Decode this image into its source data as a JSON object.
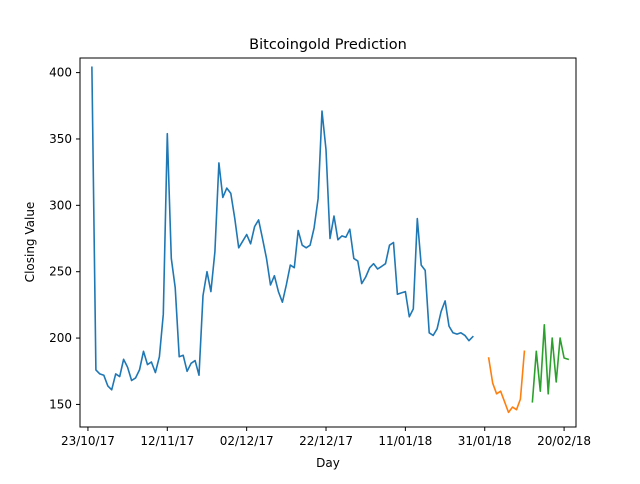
{
  "chart_data": {
    "type": "line",
    "title": "Bitcoingold Prediction",
    "xlabel": "Day",
    "ylabel": "Closing Value",
    "x_axis": {
      "start": "2017-10-21",
      "end": "2018-02-23",
      "unit": "date"
    },
    "x_ticks": [
      {
        "date": "2017-10-23",
        "label": "23/10/17"
      },
      {
        "date": "2017-11-12",
        "label": "12/11/17"
      },
      {
        "date": "2017-12-02",
        "label": "02/12/17"
      },
      {
        "date": "2017-12-22",
        "label": "22/12/17"
      },
      {
        "date": "2018-01-11",
        "label": "11/01/18"
      },
      {
        "date": "2018-01-31",
        "label": "31/01/18"
      },
      {
        "date": "2018-02-20",
        "label": "20/02/18"
      }
    ],
    "ylim": [
      133,
      411
    ],
    "y_ticks": [
      150,
      200,
      250,
      300,
      350,
      400
    ],
    "grid": false,
    "legend": "none",
    "series": [
      {
        "color": "#1f77b4",
        "x": [
          "2017-10-24",
          "2017-10-25",
          "2017-10-26",
          "2017-10-27",
          "2017-10-28",
          "2017-10-29",
          "2017-10-30",
          "2017-10-31",
          "2017-11-01",
          "2017-11-02",
          "2017-11-03",
          "2017-11-04",
          "2017-11-05",
          "2017-11-06",
          "2017-11-07",
          "2017-11-08",
          "2017-11-09",
          "2017-11-10",
          "2017-11-11",
          "2017-11-12",
          "2017-11-13",
          "2017-11-14",
          "2017-11-15",
          "2017-11-16",
          "2017-11-17",
          "2017-11-18",
          "2017-11-19",
          "2017-11-20",
          "2017-11-21",
          "2017-11-22",
          "2017-11-23",
          "2017-11-24",
          "2017-11-25",
          "2017-11-26",
          "2017-11-27",
          "2017-11-28",
          "2017-11-29",
          "2017-11-30",
          "2017-12-01",
          "2017-12-02",
          "2017-12-03",
          "2017-12-04",
          "2017-12-05",
          "2017-12-06",
          "2017-12-07",
          "2017-12-08",
          "2017-12-09",
          "2017-12-10",
          "2017-12-11",
          "2017-12-12",
          "2017-12-13",
          "2017-12-14",
          "2017-12-15",
          "2017-12-16",
          "2017-12-17",
          "2017-12-18",
          "2017-12-19",
          "2017-12-20",
          "2017-12-21",
          "2017-12-22",
          "2017-12-23",
          "2017-12-24",
          "2017-12-25",
          "2017-12-26",
          "2017-12-27",
          "2017-12-28",
          "2017-12-29",
          "2017-12-30",
          "2017-12-31",
          "2018-01-01",
          "2018-01-02",
          "2018-01-03",
          "2018-01-04",
          "2018-01-05",
          "2018-01-06",
          "2018-01-07",
          "2018-01-08",
          "2018-01-09",
          "2018-01-10",
          "2018-01-11",
          "2018-01-12",
          "2018-01-13",
          "2018-01-14",
          "2018-01-15",
          "2018-01-16",
          "2018-01-17",
          "2018-01-18",
          "2018-01-19",
          "2018-01-20",
          "2018-01-21",
          "2018-01-22",
          "2018-01-23",
          "2018-01-24",
          "2018-01-25",
          "2018-01-26",
          "2018-01-27",
          "2018-01-28"
        ],
        "values": [
          404,
          176,
          173,
          172,
          164,
          161,
          173,
          171,
          184,
          178,
          168,
          170,
          176,
          190,
          180,
          182,
          174,
          186,
          218,
          354,
          260,
          238,
          186,
          187,
          175,
          181,
          183,
          172,
          232,
          250,
          235,
          265,
          332,
          306,
          313,
          309,
          290,
          268,
          273,
          278,
          271,
          284,
          289,
          275,
          260,
          240,
          247,
          235,
          227,
          240,
          255,
          253,
          281,
          270,
          268,
          270,
          283,
          305,
          371,
          342,
          275,
          292,
          274,
          277,
          276,
          282,
          260,
          258,
          241,
          246,
          253,
          256,
          252,
          254,
          256,
          270,
          272,
          233,
          234,
          235,
          216,
          222,
          290,
          255,
          251,
          204,
          202,
          207,
          220,
          228,
          209,
          204,
          203,
          204,
          202,
          198,
          201
        ]
      },
      {
        "color": "#ff7f0e",
        "x": [
          "2018-02-01",
          "2018-02-02",
          "2018-02-03",
          "2018-02-04",
          "2018-02-05",
          "2018-02-06",
          "2018-02-07",
          "2018-02-08",
          "2018-02-09",
          "2018-02-10"
        ],
        "values": [
          185,
          166,
          158,
          160,
          152,
          144,
          148,
          146,
          154,
          190
        ]
      },
      {
        "color": "#2ca02c",
        "x": [
          "2018-02-12",
          "2018-02-13",
          "2018-02-14",
          "2018-02-15",
          "2018-02-16",
          "2018-02-17",
          "2018-02-18",
          "2018-02-19",
          "2018-02-20",
          "2018-02-21"
        ],
        "values": [
          152,
          190,
          160,
          210,
          158,
          200,
          167,
          200,
          185,
          184
        ]
      }
    ]
  }
}
